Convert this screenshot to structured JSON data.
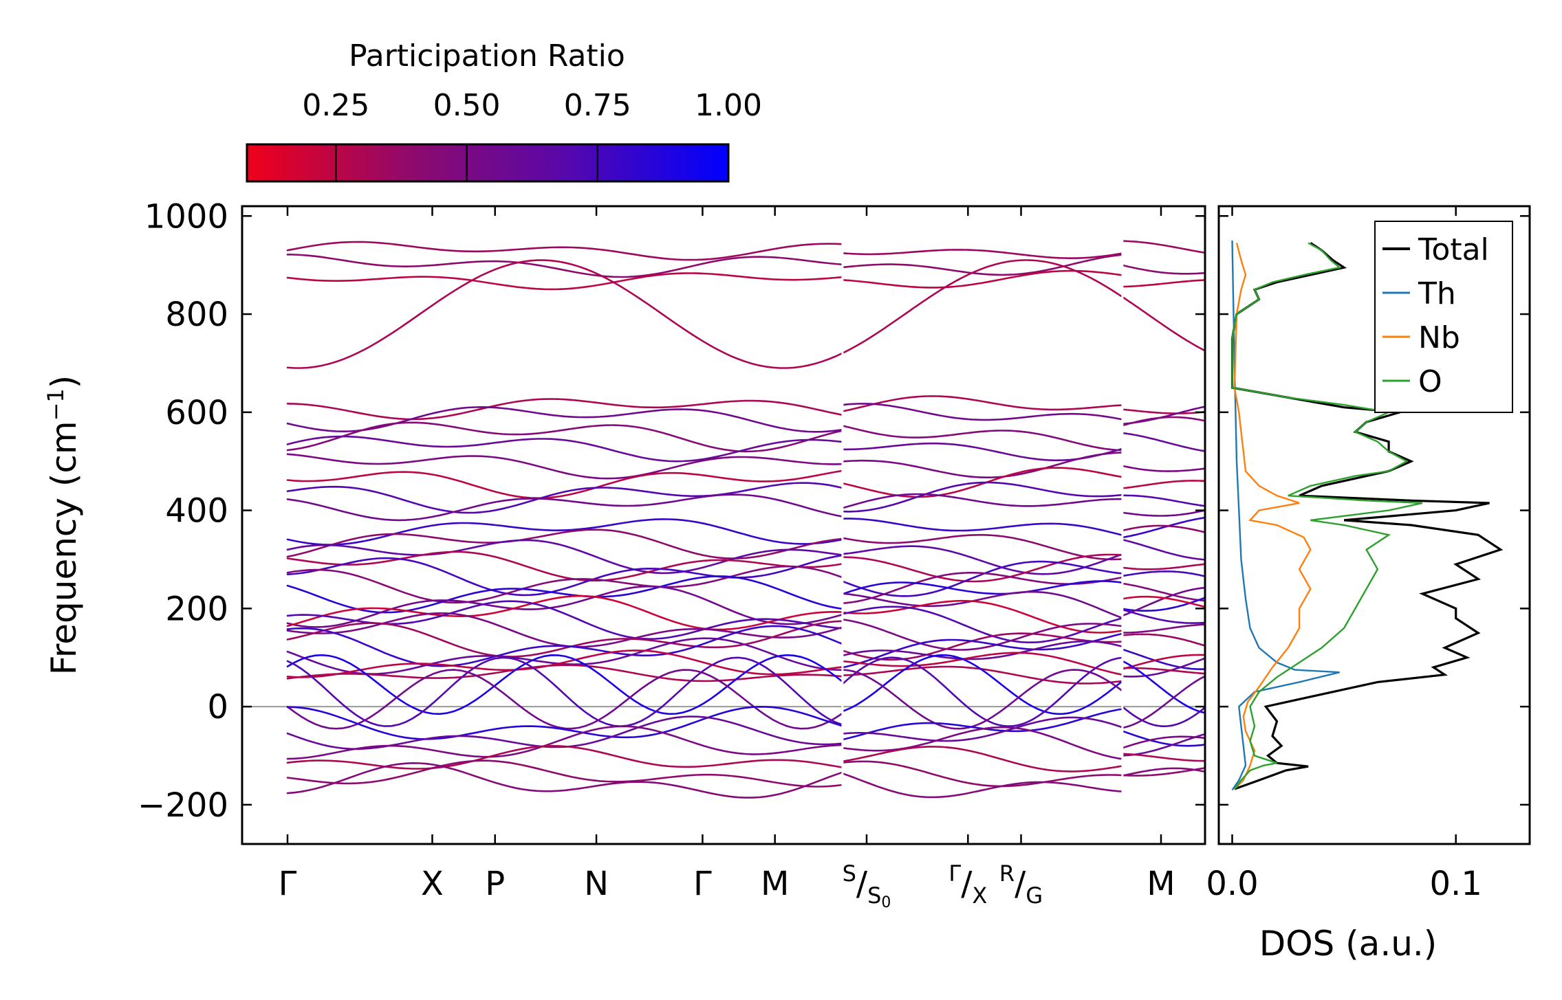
{
  "chart_data": [
    {
      "type": "line",
      "name": "phonon-band-structure",
      "ylabel": "Frequency (cm",
      "ylabel_sup": "−1",
      "ylabel_end": ")",
      "ylim": [
        -280,
        1020
      ],
      "yticks": [
        -200,
        0,
        200,
        400,
        600,
        800,
        1000
      ],
      "ytick_labels": [
        "−200",
        "0",
        "200",
        "400",
        "600",
        "800",
        "1000"
      ],
      "xlim": [
        0,
        10
      ],
      "segments": [
        [
          0,
          5.75
        ],
        [
          5.75,
          8.65
        ],
        [
          8.65,
          10
        ]
      ],
      "kpoints": [
        {
          "pos": 0.0,
          "label": "Γ"
        },
        {
          "pos": 1.5,
          "label": "X"
        },
        {
          "pos": 2.15,
          "label": "P"
        },
        {
          "pos": 3.2,
          "label": "N"
        },
        {
          "pos": 4.3,
          "label": "Γ"
        },
        {
          "pos": 5.05,
          "label": "M"
        },
        {
          "pos": 6.0,
          "label": "S/S0",
          "main": "S",
          "sub": "S",
          "subsub": "0"
        },
        {
          "pos": 7.05,
          "label": "Γ/X",
          "main": "Γ",
          "sub": "X"
        },
        {
          "pos": 7.6,
          "label": "R/G",
          "main": "R",
          "sub": "G"
        },
        {
          "pos": 9.05,
          "label": "M"
        }
      ],
      "zero_line": 0,
      "colorbar": {
        "label": "Participation Ratio",
        "ticks": [
          0.25,
          0.5,
          0.75,
          1.0
        ],
        "tick_labels": [
          "0.25",
          "0.50",
          "0.75",
          "1.00"
        ],
        "range": [
          0.08,
          1.0
        ],
        "colors": [
          "#f0001a",
          "#8c0a6e",
          "#5a08a8",
          "#0000ff"
        ]
      },
      "band_hints": [
        {
          "f": 930,
          "amp": 20,
          "pr": 0.35
        },
        {
          "f": 900,
          "amp": 25,
          "pr": 0.4
        },
        {
          "f": 870,
          "amp": 20,
          "pr": 0.25
        },
        {
          "f": 800,
          "amp": 110,
          "pr": 0.3
        },
        {
          "f": 610,
          "amp": 25,
          "pr": 0.3
        },
        {
          "f": 590,
          "amp": 30,
          "pr": 0.55
        },
        {
          "f": 555,
          "amp": 35,
          "pr": 0.45
        },
        {
          "f": 530,
          "amp": 30,
          "pr": 0.6
        },
        {
          "f": 495,
          "amp": 30,
          "pr": 0.5
        },
        {
          "f": 460,
          "amp": 35,
          "pr": 0.25
        },
        {
          "f": 430,
          "amp": 35,
          "pr": 0.7
        },
        {
          "f": 410,
          "amp": 30,
          "pr": 0.55
        },
        {
          "f": 360,
          "amp": 30,
          "pr": 0.8
        },
        {
          "f": 335,
          "amp": 35,
          "pr": 0.4
        },
        {
          "f": 310,
          "amp": 40,
          "pr": 0.65
        },
        {
          "f": 290,
          "amp": 35,
          "pr": 0.3
        },
        {
          "f": 270,
          "amp": 45,
          "pr": 0.75
        },
        {
          "f": 250,
          "amp": 40,
          "pr": 0.45
        },
        {
          "f": 230,
          "amp": 40,
          "pr": 0.85
        },
        {
          "f": 205,
          "amp": 45,
          "pr": 0.55
        },
        {
          "f": 190,
          "amp": 40,
          "pr": 0.2
        },
        {
          "f": 175,
          "amp": 45,
          "pr": 0.7
        },
        {
          "f": 155,
          "amp": 40,
          "pr": 0.5
        },
        {
          "f": 135,
          "amp": 40,
          "pr": 0.35
        },
        {
          "f": 120,
          "amp": 45,
          "pr": 0.8
        },
        {
          "f": 100,
          "amp": 40,
          "pr": 0.6
        },
        {
          "f": 85,
          "amp": 30,
          "pr": 0.25
        },
        {
          "f": 65,
          "amp": 20,
          "pr": 0.3
        },
        {
          "f": 45,
          "amp": 60,
          "pr": 0.9
        },
        {
          "f": 30,
          "amp": 70,
          "pr": 0.7
        },
        {
          "f": 15,
          "amp": 60,
          "pr": 0.55
        },
        {
          "f": -40,
          "amp": 40,
          "pr": 0.85
        },
        {
          "f": -60,
          "amp": 40,
          "pr": 0.6
        },
        {
          "f": -80,
          "amp": 40,
          "pr": 0.5
        },
        {
          "f": -110,
          "amp": 30,
          "pr": 0.3
        },
        {
          "f": -140,
          "amp": 30,
          "pr": 0.4
        },
        {
          "f": -155,
          "amp": 40,
          "pr": 0.45
        }
      ]
    },
    {
      "type": "line",
      "name": "phonon-dos",
      "xlabel": "DOS (a.u.)",
      "xlim": [
        -0.006,
        0.133
      ],
      "xticks": [
        0.0,
        0.1
      ],
      "xtick_labels": [
        "0.0",
        "0.1"
      ],
      "ylim": [
        -280,
        1020
      ],
      "legend": {
        "position": "top-right"
      },
      "series": [
        {
          "name": "Total",
          "color": "#000000",
          "points": [
            [
              0.001,
              -168
            ],
            [
              0.006,
              -160
            ],
            [
              0.012,
              -150
            ],
            [
              0.018,
              -140
            ],
            [
              0.024,
              -130
            ],
            [
              0.03,
              -125
            ],
            [
              0.034,
              -122
            ],
            [
              0.02,
              -115
            ],
            [
              0.016,
              -100
            ],
            [
              0.022,
              -80
            ],
            [
              0.018,
              -60
            ],
            [
              0.02,
              -30
            ],
            [
              0.015,
              0
            ],
            [
              0.035,
              20
            ],
            [
              0.065,
              50
            ],
            [
              0.095,
              65
            ],
            [
              0.09,
              80
            ],
            [
              0.105,
              100
            ],
            [
              0.095,
              120
            ],
            [
              0.11,
              150
            ],
            [
              0.1,
              180
            ],
            [
              0.1,
              200
            ],
            [
              0.085,
              230
            ],
            [
              0.11,
              260
            ],
            [
              0.1,
              290
            ],
            [
              0.12,
              320
            ],
            [
              0.11,
              350
            ],
            [
              0.08,
              370
            ],
            [
              0.05,
              380
            ],
            [
              0.1,
              400
            ],
            [
              0.115,
              415
            ],
            [
              0.08,
              420
            ],
            [
              0.03,
              430
            ],
            [
              0.04,
              450
            ],
            [
              0.06,
              470
            ],
            [
              0.07,
              480
            ],
            [
              0.08,
              500
            ],
            [
              0.07,
              520
            ],
            [
              0.07,
              540
            ],
            [
              0.055,
              560
            ],
            [
              0.06,
              580
            ],
            [
              0.075,
              600
            ],
            [
              0.05,
              610
            ],
            [
              0.025,
              630
            ],
            [
              0.0,
              650
            ],
            [
              0.0,
              700
            ],
            [
              0.0,
              750
            ],
            [
              0.002,
              800
            ],
            [
              0.012,
              830
            ],
            [
              0.01,
              850
            ],
            [
              0.02,
              865
            ],
            [
              0.035,
              880
            ],
            [
              0.05,
              895
            ],
            [
              0.045,
              910
            ],
            [
              0.04,
              930
            ],
            [
              0.035,
              945
            ]
          ]
        },
        {
          "name": "Th",
          "color": "#1f77b4",
          "points": [
            [
              0.0,
              -170
            ],
            [
              0.003,
              -150
            ],
            [
              0.006,
              -120
            ],
            [
              0.005,
              -80
            ],
            [
              0.004,
              -40
            ],
            [
              0.003,
              0
            ],
            [
              0.01,
              30
            ],
            [
              0.03,
              50
            ],
            [
              0.048,
              70
            ],
            [
              0.028,
              75
            ],
            [
              0.02,
              90
            ],
            [
              0.012,
              120
            ],
            [
              0.008,
              160
            ],
            [
              0.006,
              220
            ],
            [
              0.004,
              300
            ],
            [
              0.003,
              400
            ],
            [
              0.002,
              500
            ],
            [
              0.001,
              700
            ],
            [
              0.0,
              950
            ]
          ]
        },
        {
          "name": "Nb",
          "color": "#ff7f0e",
          "points": [
            [
              0.001,
              -168
            ],
            [
              0.005,
              -150
            ],
            [
              0.008,
              -120
            ],
            [
              0.01,
              -90
            ],
            [
              0.006,
              -50
            ],
            [
              0.005,
              -20
            ],
            [
              0.007,
              10
            ],
            [
              0.012,
              40
            ],
            [
              0.018,
              80
            ],
            [
              0.025,
              120
            ],
            [
              0.03,
              160
            ],
            [
              0.03,
              200
            ],
            [
              0.035,
              240
            ],
            [
              0.03,
              280
            ],
            [
              0.035,
              320
            ],
            [
              0.032,
              345
            ],
            [
              0.02,
              370
            ],
            [
              0.008,
              380
            ],
            [
              0.012,
              400
            ],
            [
              0.03,
              415
            ],
            [
              0.02,
              430
            ],
            [
              0.012,
              450
            ],
            [
              0.006,
              480
            ],
            [
              0.005,
              520
            ],
            [
              0.004,
              560
            ],
            [
              0.003,
              600
            ],
            [
              0.001,
              650
            ],
            [
              0.002,
              800
            ],
            [
              0.004,
              850
            ],
            [
              0.006,
              880
            ],
            [
              0.004,
              910
            ],
            [
              0.002,
              945
            ]
          ]
        },
        {
          "name": "O",
          "color": "#2ca02c",
          "points": [
            [
              0.001,
              -168
            ],
            [
              0.004,
              -150
            ],
            [
              0.008,
              -130
            ],
            [
              0.014,
              -120
            ],
            [
              0.02,
              -115
            ],
            [
              0.01,
              -100
            ],
            [
              0.008,
              -70
            ],
            [
              0.01,
              -40
            ],
            [
              0.008,
              0
            ],
            [
              0.012,
              30
            ],
            [
              0.02,
              60
            ],
            [
              0.03,
              90
            ],
            [
              0.04,
              120
            ],
            [
              0.05,
              160
            ],
            [
              0.055,
              200
            ],
            [
              0.06,
              240
            ],
            [
              0.065,
              280
            ],
            [
              0.06,
              320
            ],
            [
              0.07,
              350
            ],
            [
              0.05,
              370
            ],
            [
              0.035,
              380
            ],
            [
              0.07,
              400
            ],
            [
              0.085,
              415
            ],
            [
              0.06,
              420
            ],
            [
              0.025,
              430
            ],
            [
              0.035,
              450
            ],
            [
              0.055,
              470
            ],
            [
              0.07,
              480
            ],
            [
              0.078,
              500
            ],
            [
              0.07,
              520
            ],
            [
              0.065,
              540
            ],
            [
              0.055,
              560
            ],
            [
              0.06,
              580
            ],
            [
              0.07,
              600
            ],
            [
              0.05,
              615
            ],
            [
              0.025,
              630
            ],
            [
              0.0,
              650
            ],
            [
              0.0,
              700
            ],
            [
              0.0,
              750
            ],
            [
              0.002,
              800
            ],
            [
              0.012,
              830
            ],
            [
              0.01,
              850
            ],
            [
              0.018,
              865
            ],
            [
              0.032,
              880
            ],
            [
              0.048,
              895
            ],
            [
              0.044,
              910
            ],
            [
              0.04,
              930
            ],
            [
              0.034,
              945
            ]
          ]
        }
      ]
    }
  ]
}
